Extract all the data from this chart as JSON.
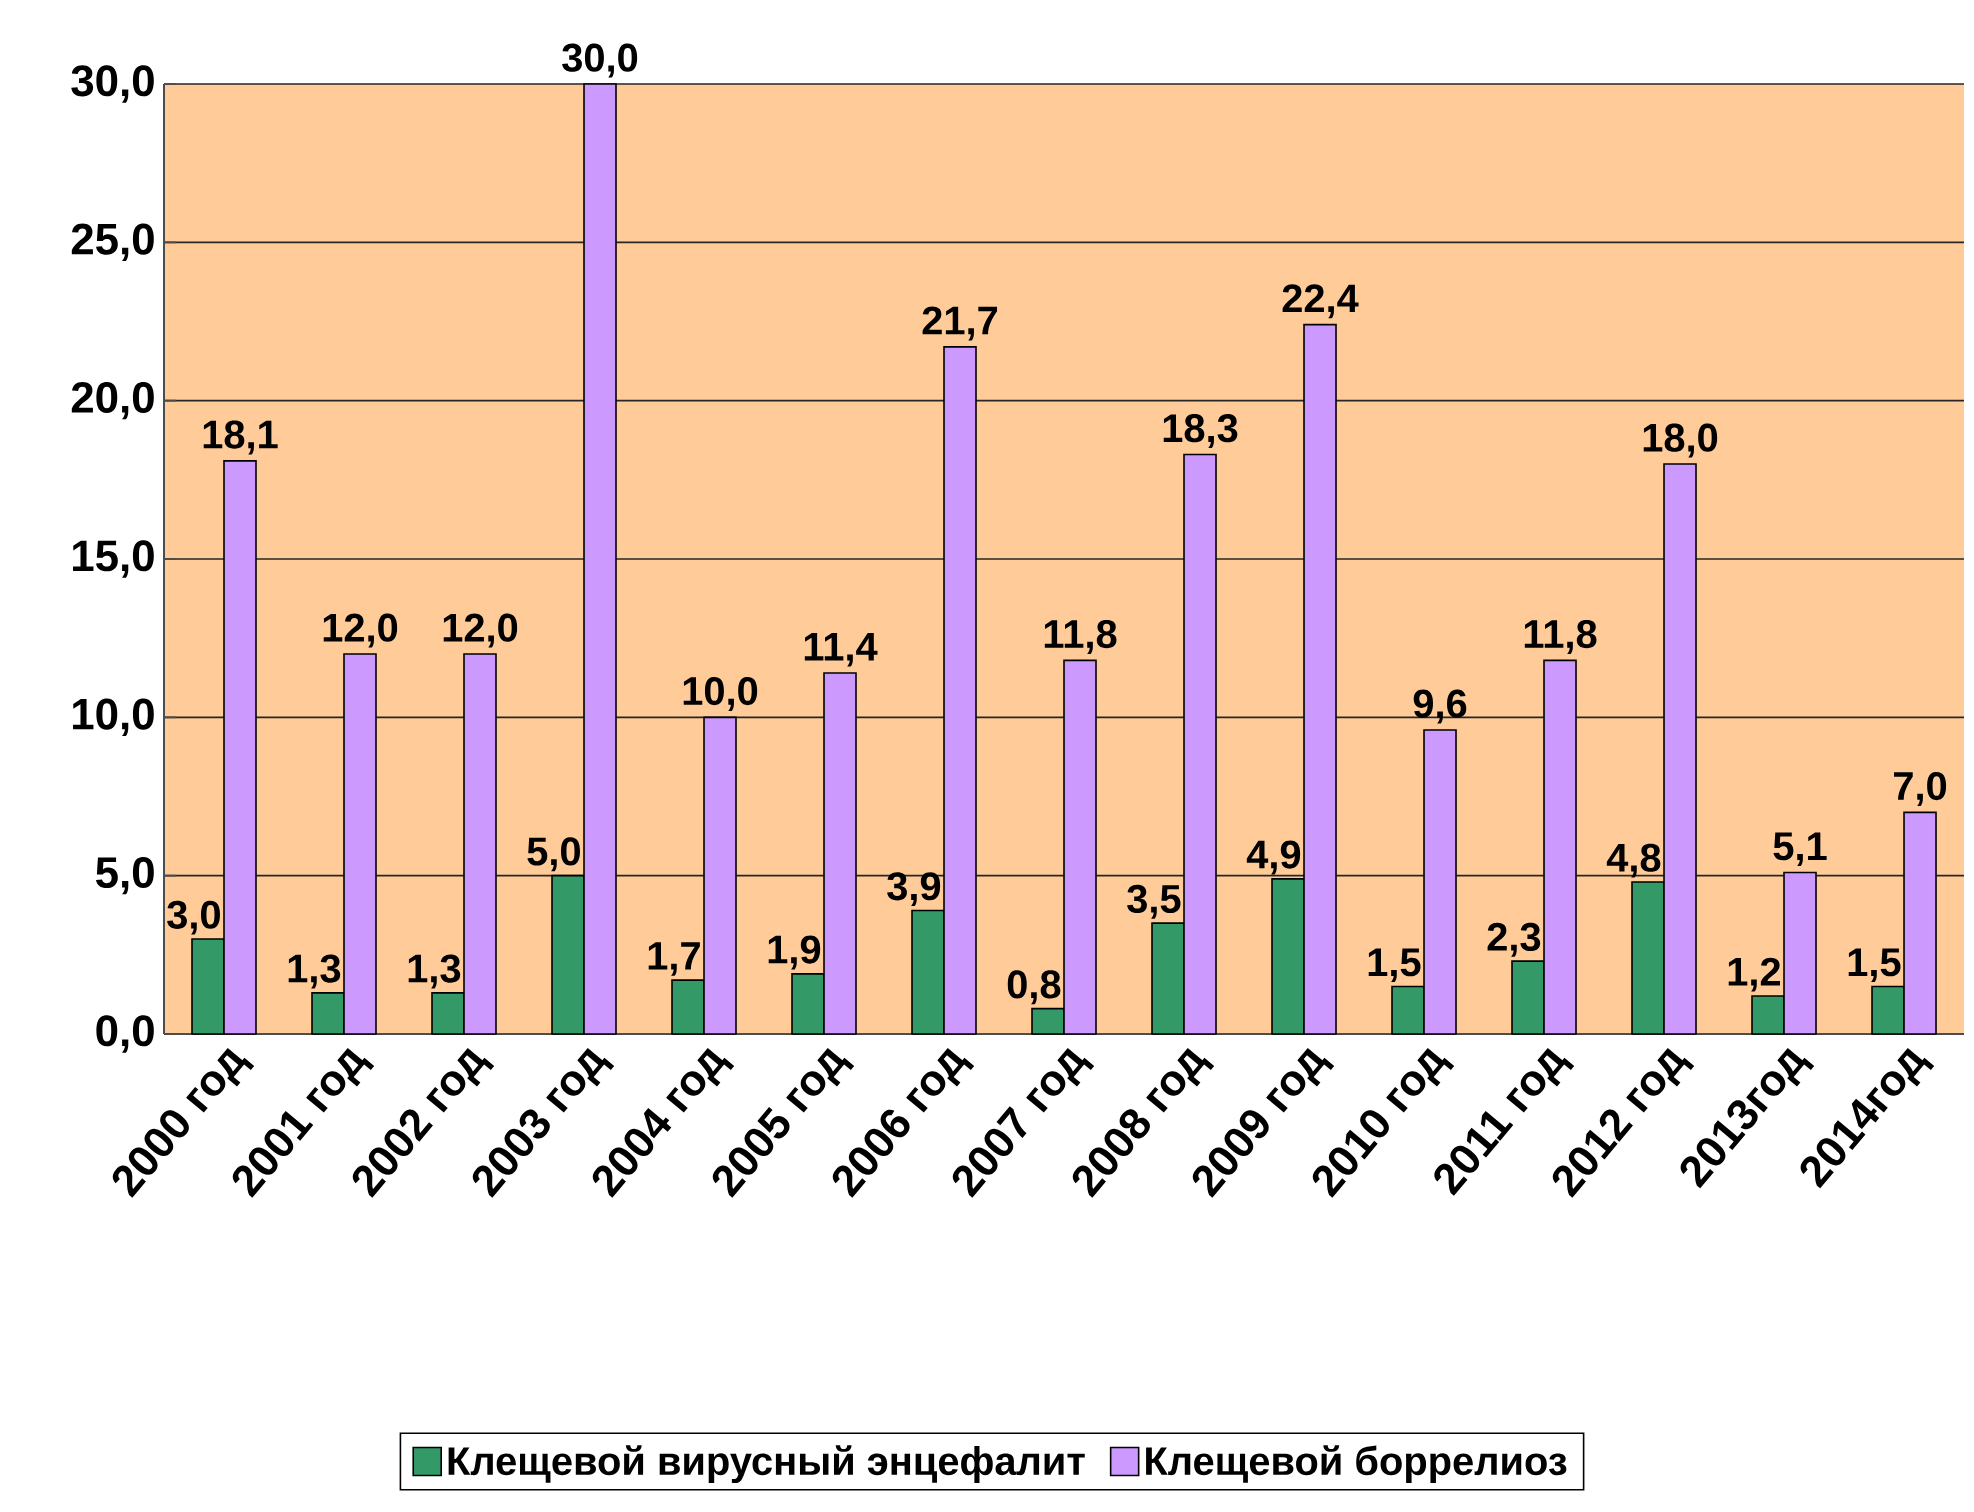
{
  "chart_data": {
    "type": "bar",
    "categories": [
      "2000 год",
      "2001 год",
      "2002 год",
      "2003 год",
      "2004 год",
      "2005 год",
      "2006 год",
      "2007 год",
      "2008 год",
      "2009 год",
      "2010 год",
      "2011 год",
      "2012 год",
      "2013год",
      "2014год"
    ],
    "series": [
      {
        "name": "Клещевой вирусный энцефалит",
        "color": "#339966",
        "values": [
          3.0,
          1.3,
          1.3,
          5.0,
          1.7,
          1.9,
          3.9,
          0.8,
          3.5,
          4.9,
          1.5,
          2.3,
          4.8,
          1.2,
          1.5
        ],
        "value_labels": [
          "3,0",
          "1,3",
          "1,3",
          "5,0",
          "1,7",
          "1,9",
          "3,9",
          "0,8",
          "3,5",
          "4,9",
          "1,5",
          "2,3",
          "4,8",
          "1,2",
          "1,5"
        ]
      },
      {
        "name": "Клещевой боррелиоз",
        "color": "#cc99ff",
        "values": [
          18.1,
          12.0,
          12.0,
          30.0,
          10.0,
          11.4,
          21.7,
          11.8,
          18.3,
          22.4,
          9.6,
          11.8,
          18.0,
          5.1,
          7.0
        ],
        "value_labels": [
          "18,1",
          "12,0",
          "12,0",
          "30,0",
          "10,0",
          "11,4",
          "21,7",
          "11,8",
          "18,3",
          "22,4",
          "9,6",
          "11,8",
          "18,0",
          "5,1",
          "7,0"
        ]
      }
    ],
    "ylim": [
      0,
      30
    ],
    "yticks": [
      {
        "value": 0,
        "label": "0,0"
      },
      {
        "value": 5,
        "label": "5,0"
      },
      {
        "value": 10,
        "label": "10,0"
      },
      {
        "value": 15,
        "label": "15,0"
      },
      {
        "value": 20,
        "label": "20,0"
      },
      {
        "value": 25,
        "label": "25,0"
      },
      {
        "value": 30,
        "label": "30,0"
      }
    ],
    "grid": "y",
    "legend": "bottom"
  }
}
